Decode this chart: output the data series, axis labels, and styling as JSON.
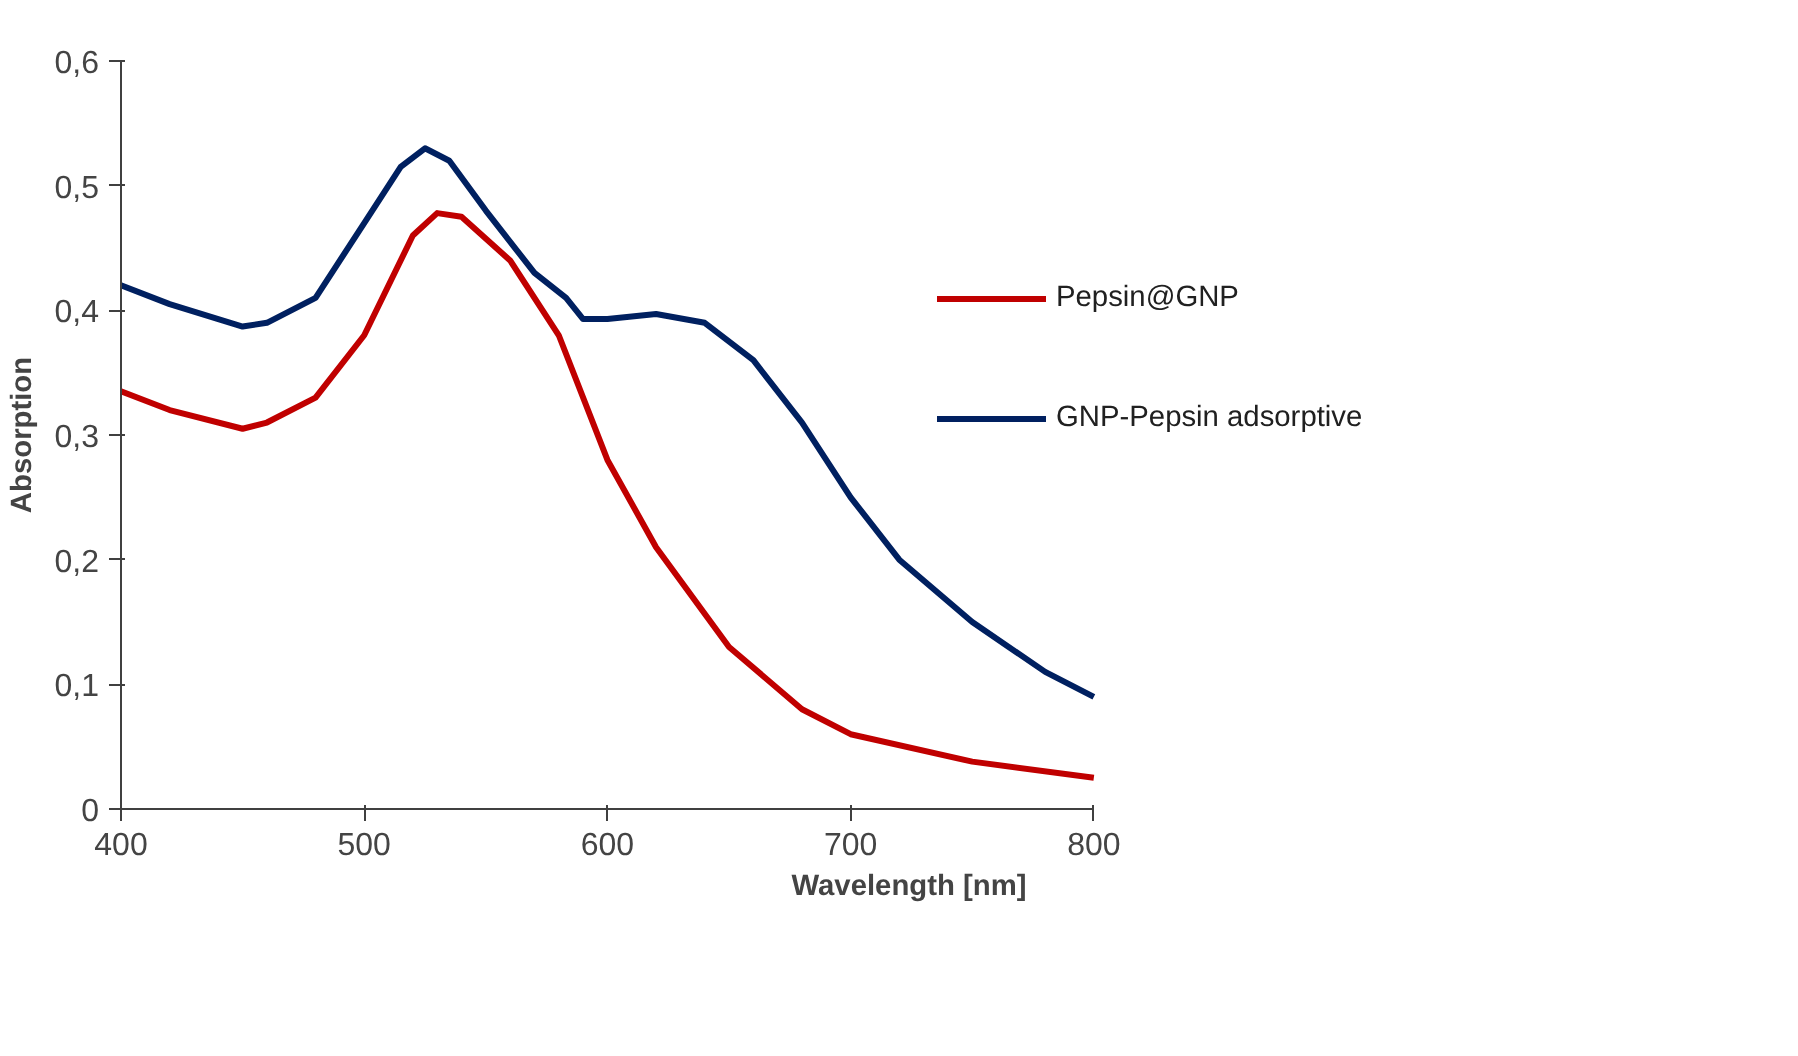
{
  "chart_data": {
    "type": "line",
    "xlabel": "Wavelength [nm]",
    "ylabel": "Absorption",
    "xlim": [
      400,
      800
    ],
    "xticks": [
      400,
      500,
      600,
      700,
      800
    ],
    "ylim": [
      0,
      0.6
    ],
    "yticks": [
      0,
      {
        "value": 0.1,
        "label": "0,1"
      },
      {
        "value": 0.2,
        "label": "0,2"
      },
      {
        "value": 0.3,
        "label": "0,3"
      },
      {
        "value": 0.4,
        "label": "0,4"
      },
      {
        "value": 0.5,
        "label": "0,5"
      },
      {
        "value": 0.6,
        "label": "0,6"
      }
    ],
    "grid": false,
    "legend": "right",
    "marker": "none",
    "line_style": "solid",
    "series": [
      {
        "name": "Pepsin@GNP",
        "color": "#c00000",
        "x": [
          400,
          420,
          450,
          460,
          480,
          500,
          520,
          530,
          540,
          560,
          580,
          600,
          620,
          650,
          680,
          700,
          750,
          800
        ],
        "values": [
          0.335,
          0.32,
          0.305,
          0.31,
          0.33,
          0.38,
          0.46,
          0.478,
          0.475,
          0.44,
          0.38,
          0.28,
          0.21,
          0.13,
          0.08,
          0.06,
          0.038,
          0.025
        ]
      },
      {
        "name": "GNP-Pepsin adsorptive",
        "color": "#002060",
        "x": [
          400,
          420,
          450,
          460,
          480,
          500,
          515,
          525,
          535,
          550,
          570,
          583,
          590,
          600,
          620,
          640,
          660,
          680,
          700,
          720,
          750,
          780,
          800
        ],
        "values": [
          0.42,
          0.405,
          0.387,
          0.39,
          0.41,
          0.47,
          0.515,
          0.53,
          0.52,
          0.48,
          0.43,
          0.41,
          0.393,
          0.393,
          0.397,
          0.39,
          0.36,
          0.31,
          0.25,
          0.2,
          0.15,
          0.11,
          0.09
        ]
      }
    ]
  }
}
